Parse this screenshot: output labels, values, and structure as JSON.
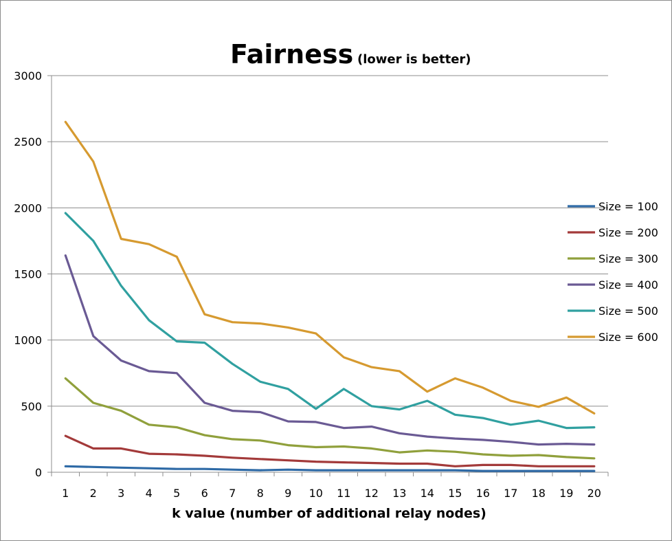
{
  "chart_data": {
    "type": "line",
    "title": "Fairness",
    "subtitle": "(lower is better)",
    "xlabel": "k value (number of additional relay nodes)",
    "ylabel": "",
    "x": [
      1,
      2,
      3,
      4,
      5,
      6,
      7,
      8,
      9,
      10,
      11,
      12,
      13,
      14,
      15,
      16,
      17,
      18,
      19,
      20
    ],
    "ylim": [
      0,
      3000
    ],
    "yticks": [
      0,
      500,
      1000,
      1500,
      2000,
      2500,
      3000
    ],
    "grid": "horizontal",
    "legend_position": "right",
    "series": [
      {
        "name": "Size = 100",
        "color": "#2e6aa6",
        "values": [
          45,
          40,
          35,
          30,
          25,
          25,
          20,
          15,
          20,
          15,
          15,
          15,
          15,
          15,
          15,
          10,
          10,
          10,
          10,
          10
        ]
      },
      {
        "name": "Size = 200",
        "color": "#a33a3a",
        "values": [
          275,
          180,
          180,
          140,
          135,
          125,
          110,
          100,
          90,
          80,
          75,
          70,
          65,
          65,
          45,
          55,
          55,
          45,
          45,
          45
        ]
      },
      {
        "name": "Size = 300",
        "color": "#90a03c",
        "values": [
          710,
          525,
          465,
          360,
          340,
          280,
          250,
          240,
          205,
          190,
          195,
          180,
          150,
          165,
          155,
          135,
          125,
          130,
          115,
          105
        ]
      },
      {
        "name": "Size = 400",
        "color": "#6a5a94",
        "values": [
          1640,
          1030,
          845,
          765,
          750,
          525,
          465,
          455,
          385,
          380,
          335,
          345,
          295,
          270,
          255,
          245,
          230,
          210,
          215,
          210
        ]
      },
      {
        "name": "Size = 500",
        "color": "#30a0a0",
        "values": [
          1960,
          1750,
          1410,
          1150,
          990,
          980,
          820,
          685,
          630,
          480,
          630,
          500,
          475,
          540,
          435,
          410,
          360,
          390,
          335,
          340
        ]
      },
      {
        "name": "Size = 600",
        "color": "#d69a30",
        "values": [
          2650,
          2350,
          1765,
          1725,
          1630,
          1195,
          1135,
          1125,
          1095,
          1050,
          870,
          795,
          765,
          610,
          710,
          640,
          540,
          495,
          565,
          445
        ]
      }
    ]
  }
}
